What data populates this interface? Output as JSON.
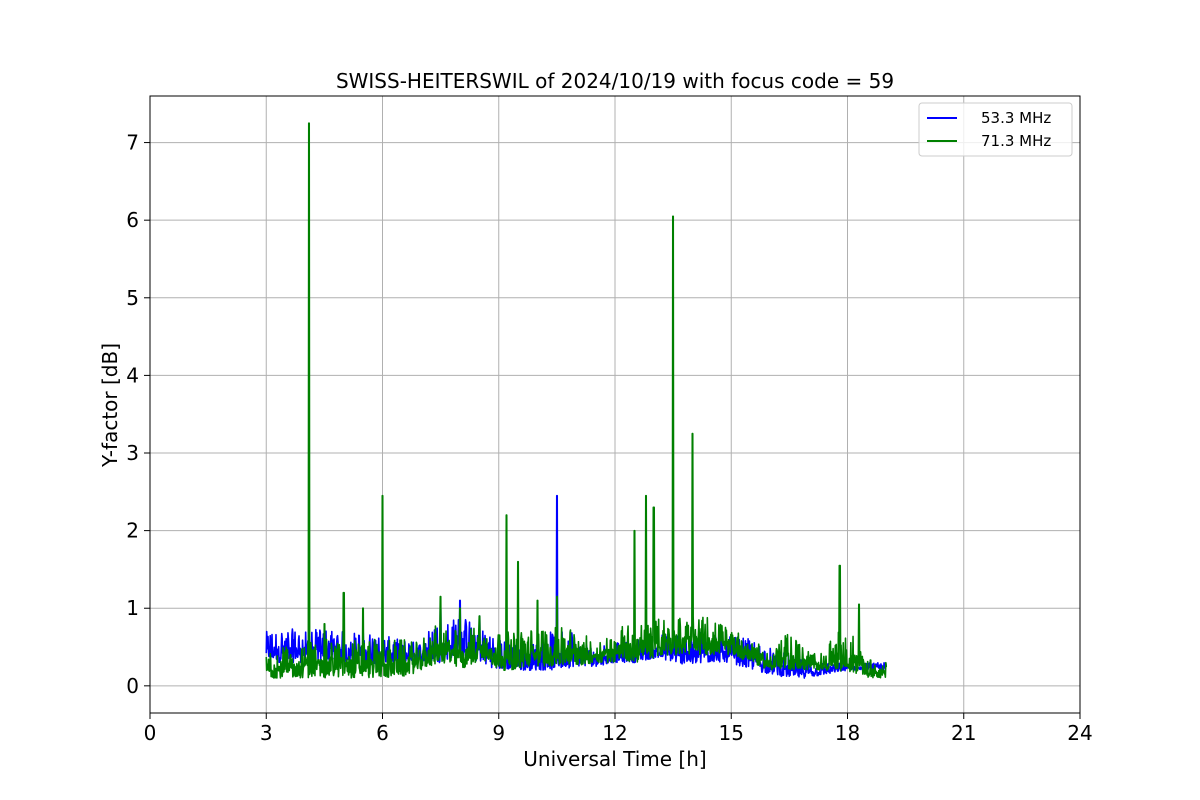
{
  "chart_data": {
    "type": "line",
    "title": "SWISS-HEITERSWIL of 2024/10/19 with focus code = 59",
    "xlabel": "Universal Time [h]",
    "ylabel": "Y-factor [dB]",
    "xlim": [
      0,
      24
    ],
    "ylim": [
      -0.35,
      7.6
    ],
    "xticks": [
      0,
      3,
      6,
      9,
      12,
      15,
      18,
      21,
      24
    ],
    "yticks": [
      0,
      1,
      2,
      3,
      4,
      5,
      6,
      7
    ],
    "xtick_labels": [
      "0",
      "3",
      "6",
      "9",
      "12",
      "15",
      "18",
      "21",
      "24"
    ],
    "ytick_labels": [
      "0",
      "1",
      "2",
      "3",
      "4",
      "5",
      "6",
      "7"
    ],
    "grid": true,
    "legend_position": "top-right",
    "series": [
      {
        "name": "53.3 MHz",
        "color": "#0000ff",
        "x": [
          3.0,
          3.5,
          4.0,
          4.5,
          5.0,
          5.5,
          6.0,
          6.5,
          7.0,
          7.5,
          8.0,
          8.5,
          9.0,
          9.5,
          10.0,
          10.5,
          11.0,
          11.5,
          12.0,
          12.5,
          13.0,
          13.5,
          14.0,
          14.5,
          15.0,
          15.5,
          16.0,
          16.5,
          17.0,
          17.5,
          18.0,
          18.5,
          19.0
        ],
        "low": [
          0.3,
          0.3,
          0.3,
          0.3,
          0.3,
          0.3,
          0.25,
          0.3,
          0.3,
          0.3,
          0.4,
          0.3,
          0.2,
          0.2,
          0.2,
          0.2,
          0.25,
          0.25,
          0.3,
          0.3,
          0.35,
          0.3,
          0.25,
          0.3,
          0.3,
          0.2,
          0.15,
          0.1,
          0.1,
          0.15,
          0.2,
          0.2,
          0.2
        ],
        "high": [
          0.7,
          0.75,
          0.7,
          0.75,
          0.7,
          0.7,
          0.65,
          0.6,
          0.55,
          1.0,
          1.1,
          0.9,
          0.6,
          0.55,
          0.55,
          2.45,
          0.55,
          0.55,
          0.55,
          0.6,
          0.65,
          0.7,
          0.7,
          0.7,
          0.65,
          0.6,
          0.5,
          0.4,
          0.3,
          0.3,
          0.3,
          0.3,
          0.3
        ]
      },
      {
        "name": "71.3 MHz",
        "color": "#008000",
        "x": [
          3.0,
          3.5,
          4.0,
          4.1,
          4.5,
          5.0,
          5.5,
          6.0,
          6.5,
          7.0,
          7.5,
          8.0,
          8.5,
          9.0,
          9.2,
          9.5,
          10.0,
          10.5,
          11.0,
          11.5,
          12.0,
          12.5,
          12.8,
          13.0,
          13.5,
          14.0,
          14.5,
          15.0,
          15.5,
          16.0,
          16.5,
          17.0,
          17.5,
          17.8,
          18.0,
          18.3,
          18.5,
          19.0
        ],
        "low": [
          0.1,
          0.1,
          0.1,
          0.1,
          0.1,
          0.1,
          0.1,
          0.1,
          0.1,
          0.2,
          0.3,
          0.2,
          0.3,
          0.2,
          0.2,
          0.2,
          0.25,
          0.25,
          0.25,
          0.3,
          0.3,
          0.3,
          0.3,
          0.35,
          0.4,
          0.4,
          0.4,
          0.4,
          0.3,
          0.2,
          0.2,
          0.2,
          0.2,
          0.2,
          0.15,
          0.15,
          0.1,
          0.1
        ],
        "high": [
          0.5,
          0.5,
          0.5,
          7.25,
          0.8,
          1.2,
          1.0,
          2.45,
          0.6,
          0.55,
          1.15,
          1.0,
          0.9,
          0.7,
          2.2,
          1.6,
          1.1,
          1.15,
          0.7,
          0.6,
          0.7,
          2.0,
          2.45,
          2.3,
          6.05,
          3.25,
          0.85,
          0.75,
          0.6,
          0.45,
          0.7,
          0.45,
          0.4,
          1.55,
          0.5,
          1.05,
          0.35,
          0.3
        ]
      }
    ]
  }
}
